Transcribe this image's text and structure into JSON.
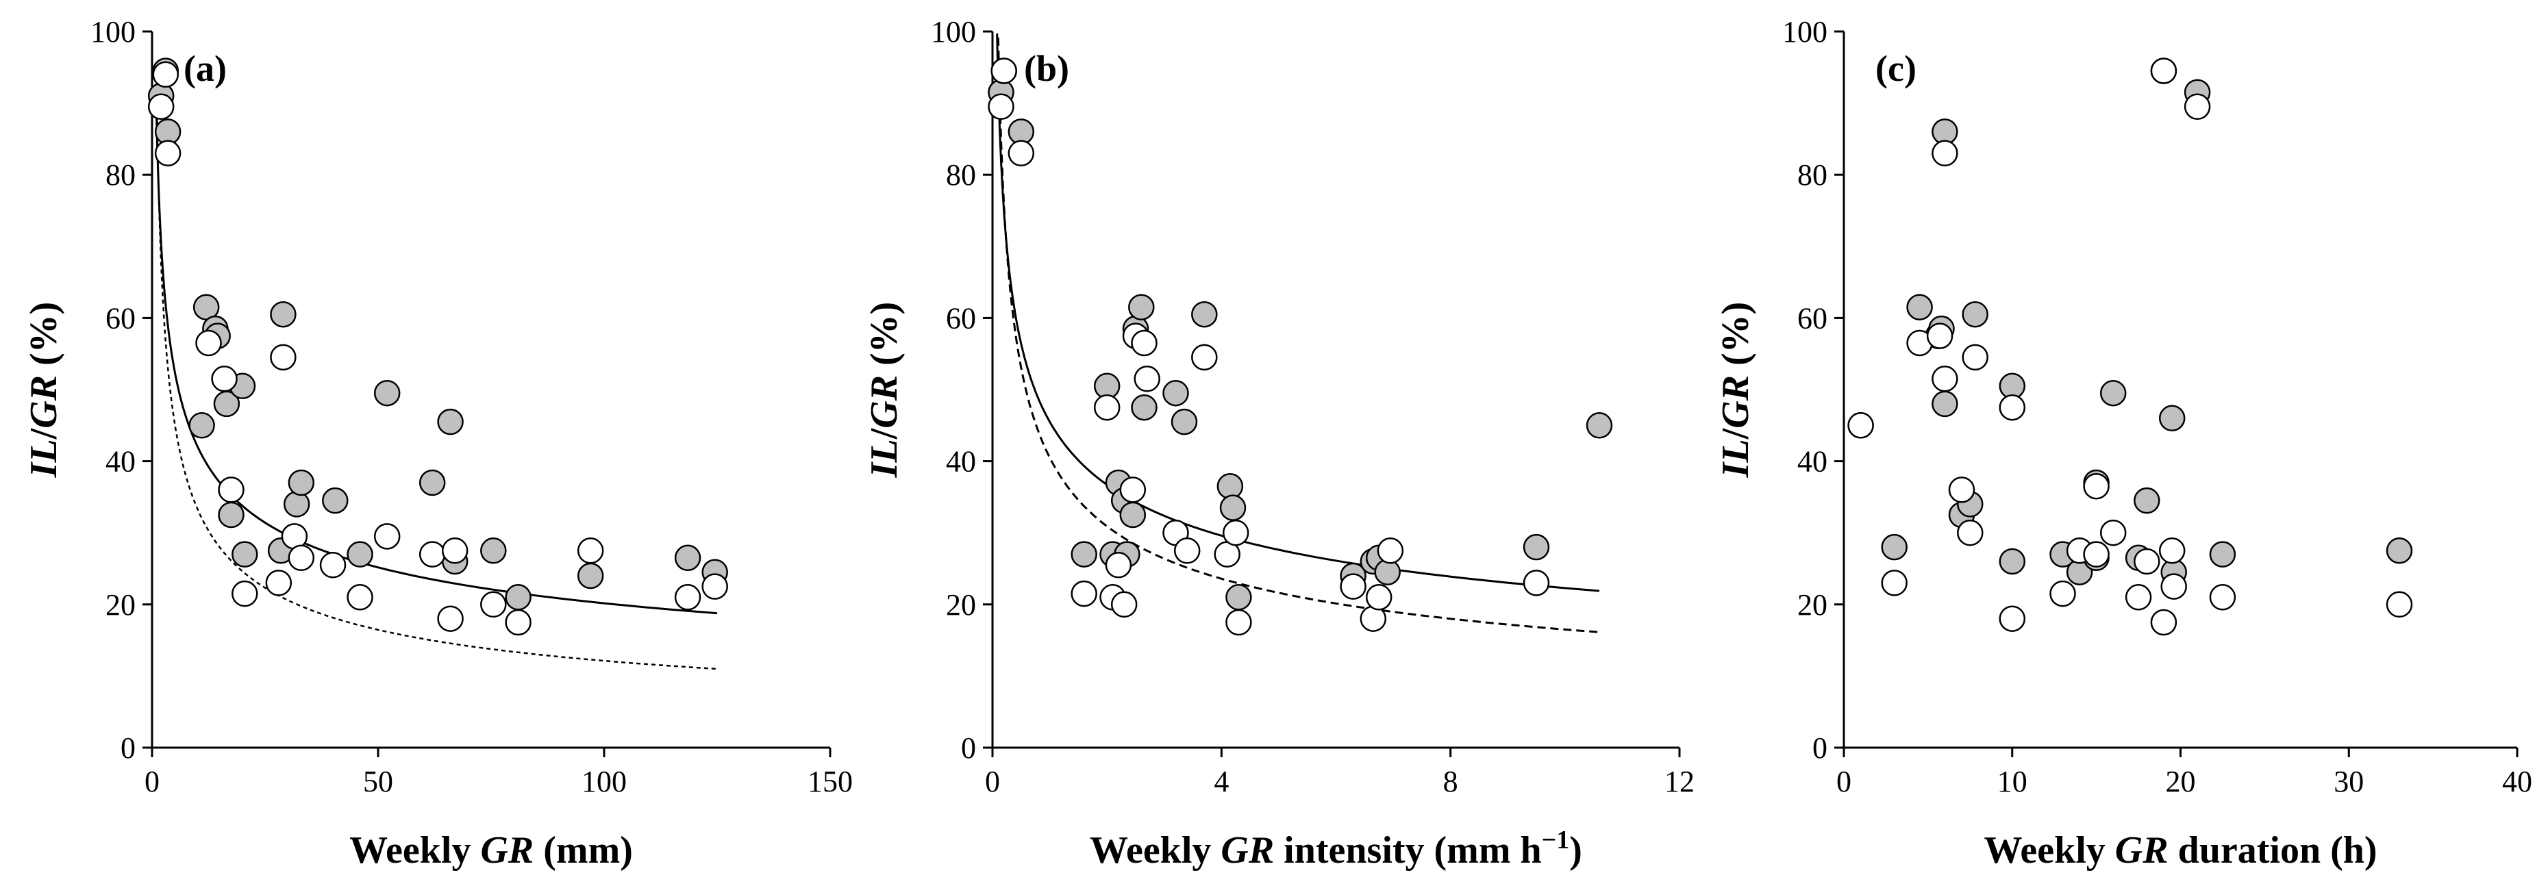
{
  "chart_data": [
    {
      "type": "scatter",
      "panel_label": "(a)",
      "title": "",
      "ylabel": "IL/GR (%)",
      "xlabel_parts": [
        "Weekly ",
        "GR",
        " (mm)"
      ],
      "xlim": [
        0,
        150
      ],
      "ylim": [
        0,
        100
      ],
      "xticks": [
        0,
        50,
        100,
        150
      ],
      "yticks": [
        0,
        20,
        40,
        60,
        80,
        100
      ],
      "grid": false,
      "series": [
        {
          "name": "filled",
          "style": "filled",
          "x": [
            2,
            3,
            3.5,
            11,
            12,
            14,
            14.5,
            16.5,
            17.5,
            20,
            20.5,
            28.5,
            29,
            32,
            33,
            40.5,
            46,
            52,
            62,
            66,
            67,
            75.5,
            81,
            97,
            118.5,
            124.5
          ],
          "y": [
            91,
            94.5,
            86,
            45,
            61.5,
            58.5,
            57.5,
            48,
            32.5,
            50.5,
            27,
            27.5,
            60.5,
            34,
            37,
            34.5,
            27,
            49.5,
            37,
            45.5,
            26,
            27.5,
            21,
            24,
            26.5,
            24.5
          ]
        },
        {
          "name": "open",
          "style": "open",
          "x": [
            2,
            3,
            3.5,
            12.5,
            16,
            17.5,
            20.5,
            28,
            29,
            31.5,
            33,
            40,
            46,
            52,
            62,
            66,
            67,
            75.5,
            81,
            97,
            118.5,
            124.5
          ],
          "y": [
            89.5,
            94,
            83,
            56.5,
            51.5,
            36,
            21.5,
            23,
            54.5,
            29.5,
            26.5,
            25.5,
            21,
            29.5,
            27,
            18,
            27.5,
            20,
            17.5,
            27.5,
            21,
            22.5
          ]
        }
      ],
      "fits": [
        {
          "name": "fit-filled",
          "style": "solid",
          "a": 88,
          "b": -0.32,
          "x_range": [
            1,
            125
          ]
        },
        {
          "name": "fit-open",
          "style": "dotted",
          "a": 92,
          "b": -0.44,
          "x_range": [
            1,
            125
          ]
        }
      ]
    },
    {
      "type": "scatter",
      "panel_label": "(b)",
      "title": "",
      "ylabel": "IL/GR (%)",
      "xlabel_parts": [
        "Weekly ",
        "GR",
        " intensity (mm h",
        "−1",
        ")"
      ],
      "xlim": [
        0,
        12
      ],
      "ylim": [
        0,
        100
      ],
      "xticks": [
        0,
        4,
        8,
        12
      ],
      "yticks": [
        0,
        20,
        40,
        60,
        80,
        100
      ],
      "grid": false,
      "series": [
        {
          "name": "filled",
          "style": "filled",
          "x": [
            0.15,
            0.2,
            0.5,
            1.6,
            2.0,
            2.1,
            2.2,
            2.3,
            2.35,
            2.45,
            2.5,
            2.6,
            2.65,
            3.2,
            3.35,
            3.7,
            4.15,
            4.2,
            4.3,
            6.3,
            6.65,
            6.75,
            6.9,
            9.5,
            10.6
          ],
          "y": [
            91.5,
            94.5,
            86,
            27,
            50.5,
            27,
            37,
            34.5,
            27,
            32.5,
            58.5,
            61.5,
            47.5,
            49.5,
            45.5,
            60.5,
            36.5,
            33.5,
            21,
            24,
            26,
            26.5,
            24.5,
            28,
            45
          ]
        },
        {
          "name": "open",
          "style": "open",
          "x": [
            0.15,
            0.2,
            0.5,
            1.6,
            2.0,
            2.1,
            2.2,
            2.3,
            2.45,
            2.5,
            2.65,
            2.7,
            3.2,
            3.4,
            3.7,
            4.1,
            4.25,
            4.3,
            6.3,
            6.65,
            6.75,
            6.95,
            9.5
          ],
          "y": [
            89.5,
            94.5,
            83,
            21.5,
            47.5,
            21,
            25.5,
            20,
            36,
            57.5,
            56.5,
            51.5,
            30,
            27.5,
            54.5,
            27,
            30,
            17.5,
            22.5,
            18,
            21,
            27.5,
            23
          ]
        }
      ],
      "fits": [
        {
          "name": "fit-filled",
          "style": "solid",
          "a": 45.5,
          "b": -0.31,
          "x_range": [
            0.06,
            10.6
          ]
        },
        {
          "name": "fit-open",
          "style": "dashed",
          "a": 40.5,
          "b": -0.39,
          "x_range": [
            0.06,
            10.6
          ]
        }
      ]
    },
    {
      "type": "scatter",
      "panel_label": "(c)",
      "title": "",
      "ylabel": "IL/GR (%)",
      "xlabel_parts": [
        "Weekly ",
        "GR",
        " duration (h)"
      ],
      "xlim": [
        0,
        40
      ],
      "ylim": [
        0,
        100
      ],
      "xticks": [
        0,
        10,
        20,
        30,
        40
      ],
      "yticks": [
        0,
        20,
        40,
        60,
        80,
        100
      ],
      "grid": false,
      "series": [
        {
          "name": "filled",
          "style": "filled",
          "x": [
            1,
            3,
            4.5,
            5.6,
            5.8,
            6,
            6,
            7,
            7.5,
            7.8,
            10,
            10,
            13,
            14,
            15,
            15,
            16,
            17.5,
            18,
            19,
            19.5,
            19.6,
            21,
            22.5,
            33
          ],
          "y": [
            45,
            28,
            61.5,
            57.5,
            58.5,
            86,
            48,
            32.5,
            34,
            60.5,
            50.5,
            26,
            27,
            24.5,
            37,
            26.5,
            49.5,
            26.5,
            34.5,
            94.5,
            46,
            24.5,
            91.5,
            27,
            27.5
          ]
        },
        {
          "name": "open",
          "style": "open",
          "x": [
            1,
            3,
            4.5,
            5.7,
            6,
            6,
            7,
            7.5,
            7.8,
            10,
            10,
            13,
            14,
            15,
            15,
            16,
            17.5,
            18,
            19,
            19,
            19.5,
            19.6,
            21,
            22.5,
            33
          ],
          "y": [
            45,
            23,
            56.5,
            57.5,
            51.5,
            83,
            36,
            30,
            54.5,
            47.5,
            18,
            21.5,
            27.5,
            36.5,
            27,
            30,
            21,
            26,
            94.5,
            17.5,
            27.5,
            22.5,
            89.5,
            21,
            20
          ]
        }
      ],
      "fits": []
    }
  ]
}
